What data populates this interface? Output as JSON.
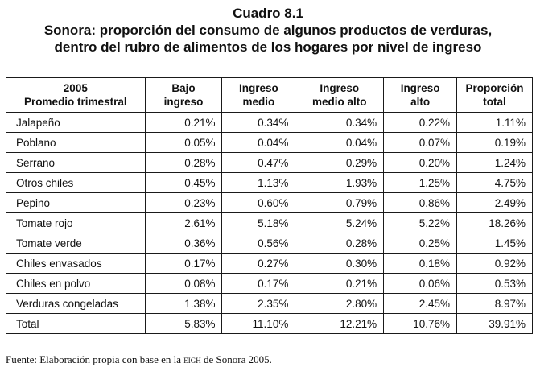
{
  "title": {
    "number": "Cuadro 8.1",
    "line1": "Sonora: proporción del consumo de algunos productos de verduras,",
    "line2": "dentro del rubro de alimentos de los hogares por nivel de ingreso"
  },
  "table": {
    "headers": [
      {
        "line1": "2005",
        "line2": "Promedio trimestral"
      },
      {
        "line1": "Bajo",
        "line2": "ingreso"
      },
      {
        "line1": "Ingreso",
        "line2": "medio"
      },
      {
        "line1": "Ingreso",
        "line2": "medio alto"
      },
      {
        "line1": "Ingreso",
        "line2": "alto"
      },
      {
        "line1": "Proporción",
        "line2": "total"
      }
    ],
    "rows": [
      [
        "Jalapeño",
        "0.21%",
        "0.34%",
        "0.34%",
        "0.22%",
        "1.11%"
      ],
      [
        "Poblano",
        "0.05%",
        "0.04%",
        "0.04%",
        "0.07%",
        "0.19%"
      ],
      [
        "Serrano",
        "0.28%",
        "0.47%",
        "0.29%",
        "0.20%",
        "1.24%"
      ],
      [
        "Otros chiles",
        "0.45%",
        "1.13%",
        "1.93%",
        "1.25%",
        "4.75%"
      ],
      [
        "Pepino",
        "0.23%",
        "0.60%",
        "0.79%",
        "0.86%",
        "2.49%"
      ],
      [
        "Tomate rojo",
        "2.61%",
        "5.18%",
        "5.24%",
        "5.22%",
        "18.26%"
      ],
      [
        "Tomate verde",
        "0.36%",
        "0.56%",
        "0.28%",
        "0.25%",
        "1.45%"
      ],
      [
        "Chiles envasados",
        "0.17%",
        "0.27%",
        "0.30%",
        "0.18%",
        "0.92%"
      ],
      [
        "Chiles en polvo",
        "0.08%",
        "0.17%",
        "0.21%",
        "0.06%",
        "0.53%"
      ],
      [
        "Verduras congeladas",
        "1.38%",
        "2.35%",
        "2.80%",
        "2.45%",
        "8.97%"
      ],
      [
        "Total",
        "5.83%",
        "11.10%",
        "12.21%",
        "10.76%",
        "39.91%"
      ]
    ]
  },
  "footer": {
    "prefix": "Fuente: Elaboración propia con base en la",
    "source": "eigh",
    "suffix": "de Sonora 2005."
  }
}
